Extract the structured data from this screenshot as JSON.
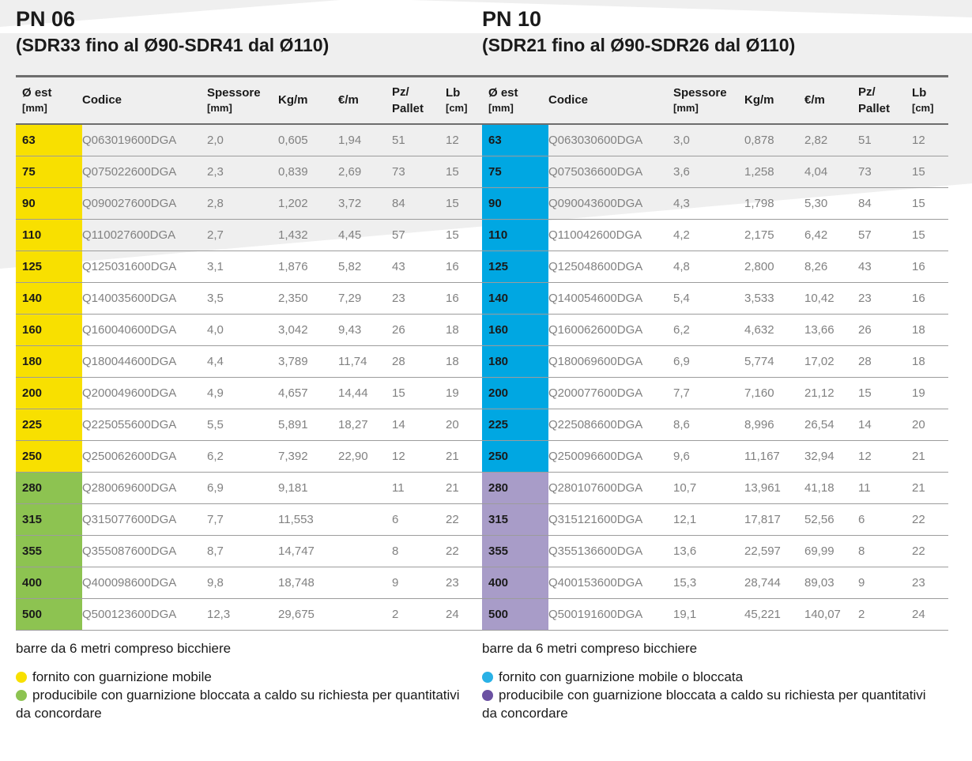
{
  "colors": {
    "background_gray": "#efefef",
    "rule_dark": "#6d6d6d",
    "rule_light": "#9c9c9c",
    "data_text": "#818181"
  },
  "columns": [
    {
      "label": "Ø est",
      "sub": "[mm]"
    },
    {
      "label": "Codice"
    },
    {
      "label": "Spessore",
      "sub": "[mm]"
    },
    {
      "label": "Kg/m"
    },
    {
      "label": "€/m"
    },
    {
      "label": "Pz/",
      "sub": "Pallet",
      "sub_full": true
    },
    {
      "label": "Lb",
      "sub": "[cm]"
    }
  ],
  "tables": [
    {
      "title": "PN 06",
      "subtitle": "(SDR33 fino al Ø90-SDR41 dal Ø110)",
      "note": "barre da 6 metri compreso bicchiere",
      "band_colors": {
        "std": "#f8e000",
        "alt": "#8dc351"
      },
      "legend": [
        {
          "color": "#f8e000",
          "text": "fornito con guarnizione mobile"
        },
        {
          "color": "#8dc351",
          "text": "producibile con guarnizione bloccata a caldo su richiesta per quantitativi da concordare"
        }
      ],
      "rows": [
        {
          "diameter": "63",
          "band": "std",
          "codice": "Q063019600DGA",
          "spessore": "2,0",
          "kg_m": "0,605",
          "eur_m": "1,94",
          "pz_pallet": "51",
          "lb": "12"
        },
        {
          "diameter": "75",
          "band": "std",
          "codice": "Q075022600DGA",
          "spessore": "2,3",
          "kg_m": "0,839",
          "eur_m": "2,69",
          "pz_pallet": "73",
          "lb": "15"
        },
        {
          "diameter": "90",
          "band": "std",
          "codice": "Q090027600DGA",
          "spessore": "2,8",
          "kg_m": "1,202",
          "eur_m": "3,72",
          "pz_pallet": "84",
          "lb": "15"
        },
        {
          "diameter": "110",
          "band": "std",
          "codice": "Q110027600DGA",
          "spessore": "2,7",
          "kg_m": "1,432",
          "eur_m": "4,45",
          "pz_pallet": "57",
          "lb": "15"
        },
        {
          "diameter": "125",
          "band": "std",
          "codice": "Q125031600DGA",
          "spessore": "3,1",
          "kg_m": "1,876",
          "eur_m": "5,82",
          "pz_pallet": "43",
          "lb": "16"
        },
        {
          "diameter": "140",
          "band": "std",
          "codice": "Q140035600DGA",
          "spessore": "3,5",
          "kg_m": "2,350",
          "eur_m": "7,29",
          "pz_pallet": "23",
          "lb": "16"
        },
        {
          "diameter": "160",
          "band": "std",
          "codice": "Q160040600DGA",
          "spessore": "4,0",
          "kg_m": "3,042",
          "eur_m": "9,43",
          "pz_pallet": "26",
          "lb": "18"
        },
        {
          "diameter": "180",
          "band": "std",
          "codice": "Q180044600DGA",
          "spessore": "4,4",
          "kg_m": "3,789",
          "eur_m": "11,74",
          "pz_pallet": "28",
          "lb": "18"
        },
        {
          "diameter": "200",
          "band": "std",
          "codice": "Q200049600DGA",
          "spessore": "4,9",
          "kg_m": "4,657",
          "eur_m": "14,44",
          "pz_pallet": "15",
          "lb": "19"
        },
        {
          "diameter": "225",
          "band": "std",
          "codice": "Q225055600DGA",
          "spessore": "5,5",
          "kg_m": "5,891",
          "eur_m": "18,27",
          "pz_pallet": "14",
          "lb": "20"
        },
        {
          "diameter": "250",
          "band": "std",
          "codice": "Q250062600DGA",
          "spessore": "6,2",
          "kg_m": "7,392",
          "eur_m": "22,90",
          "pz_pallet": "12",
          "lb": "21"
        },
        {
          "diameter": "280",
          "band": "alt",
          "codice": "Q280069600DGA",
          "spessore": "6,9",
          "kg_m": "9,181",
          "eur_m": "",
          "pz_pallet": "11",
          "lb": "21"
        },
        {
          "diameter": "315",
          "band": "alt",
          "codice": "Q315077600DGA",
          "spessore": "7,7",
          "kg_m": "11,553",
          "eur_m": "",
          "pz_pallet": "6",
          "lb": "22"
        },
        {
          "diameter": "355",
          "band": "alt",
          "codice": "Q355087600DGA",
          "spessore": "8,7",
          "kg_m": "14,747",
          "eur_m": "",
          "pz_pallet": "8",
          "lb": "22"
        },
        {
          "diameter": "400",
          "band": "alt",
          "codice": "Q400098600DGA",
          "spessore": "9,8",
          "kg_m": "18,748",
          "eur_m": "",
          "pz_pallet": "9",
          "lb": "23"
        },
        {
          "diameter": "500",
          "band": "alt",
          "codice": "Q500123600DGA",
          "spessore": "12,3",
          "kg_m": "29,675",
          "eur_m": "",
          "pz_pallet": "2",
          "lb": "24"
        }
      ]
    },
    {
      "title": "PN 10",
      "subtitle": "(SDR21 fino al Ø90-SDR26 dal Ø110)",
      "note": "barre da 6 metri compreso bicchiere",
      "band_colors": {
        "std": "#00a7e2",
        "alt": "#a89cc8"
      },
      "legend": [
        {
          "color": "#29b1e6",
          "text": "fornito con guarnizione mobile o bloccata"
        },
        {
          "color": "#6b51a2",
          "text": "producibile con guarnizione bloccata a caldo su richiesta per quantitativi da concordare"
        }
      ],
      "rows": [
        {
          "diameter": "63",
          "band": "std",
          "codice": "Q063030600DGA",
          "spessore": "3,0",
          "kg_m": "0,878",
          "eur_m": "2,82",
          "pz_pallet": "51",
          "lb": "12"
        },
        {
          "diameter": "75",
          "band": "std",
          "codice": "Q075036600DGA",
          "spessore": "3,6",
          "kg_m": "1,258",
          "eur_m": "4,04",
          "pz_pallet": "73",
          "lb": "15"
        },
        {
          "diameter": "90",
          "band": "std",
          "codice": "Q090043600DGA",
          "spessore": "4,3",
          "kg_m": "1,798",
          "eur_m": "5,30",
          "pz_pallet": "84",
          "lb": "15"
        },
        {
          "diameter": "110",
          "band": "std",
          "codice": "Q110042600DGA",
          "spessore": "4,2",
          "kg_m": "2,175",
          "eur_m": "6,42",
          "pz_pallet": "57",
          "lb": "15"
        },
        {
          "diameter": "125",
          "band": "std",
          "codice": "Q125048600DGA",
          "spessore": "4,8",
          "kg_m": "2,800",
          "eur_m": "8,26",
          "pz_pallet": "43",
          "lb": "16"
        },
        {
          "diameter": "140",
          "band": "std",
          "codice": "Q140054600DGA",
          "spessore": "5,4",
          "kg_m": "3,533",
          "eur_m": "10,42",
          "pz_pallet": "23",
          "lb": "16"
        },
        {
          "diameter": "160",
          "band": "std",
          "codice": "Q160062600DGA",
          "spessore": "6,2",
          "kg_m": "4,632",
          "eur_m": "13,66",
          "pz_pallet": "26",
          "lb": "18"
        },
        {
          "diameter": "180",
          "band": "std",
          "codice": "Q180069600DGA",
          "spessore": "6,9",
          "kg_m": "5,774",
          "eur_m": "17,02",
          "pz_pallet": "28",
          "lb": "18"
        },
        {
          "diameter": "200",
          "band": "std",
          "codice": "Q200077600DGA",
          "spessore": "7,7",
          "kg_m": "7,160",
          "eur_m": "21,12",
          "pz_pallet": "15",
          "lb": "19"
        },
        {
          "diameter": "225",
          "band": "std",
          "codice": "Q225086600DGA",
          "spessore": "8,6",
          "kg_m": "8,996",
          "eur_m": "26,54",
          "pz_pallet": "14",
          "lb": "20"
        },
        {
          "diameter": "250",
          "band": "std",
          "codice": "Q250096600DGA",
          "spessore": "9,6",
          "kg_m": "11,167",
          "eur_m": "32,94",
          "pz_pallet": "12",
          "lb": "21"
        },
        {
          "diameter": "280",
          "band": "alt",
          "codice": "Q280107600DGA",
          "spessore": "10,7",
          "kg_m": "13,961",
          "eur_m": "41,18",
          "pz_pallet": "11",
          "lb": "21"
        },
        {
          "diameter": "315",
          "band": "alt",
          "codice": "Q315121600DGA",
          "spessore": "12,1",
          "kg_m": "17,817",
          "eur_m": "52,56",
          "pz_pallet": "6",
          "lb": "22"
        },
        {
          "diameter": "355",
          "band": "alt",
          "codice": "Q355136600DGA",
          "spessore": "13,6",
          "kg_m": "22,597",
          "eur_m": "69,99",
          "pz_pallet": "8",
          "lb": "22"
        },
        {
          "diameter": "400",
          "band": "alt",
          "codice": "Q400153600DGA",
          "spessore": "15,3",
          "kg_m": "28,744",
          "eur_m": "89,03",
          "pz_pallet": "9",
          "lb": "23"
        },
        {
          "diameter": "500",
          "band": "alt",
          "codice": "Q500191600DGA",
          "spessore": "19,1",
          "kg_m": "45,221",
          "eur_m": "140,07",
          "pz_pallet": "2",
          "lb": "24"
        }
      ]
    }
  ]
}
